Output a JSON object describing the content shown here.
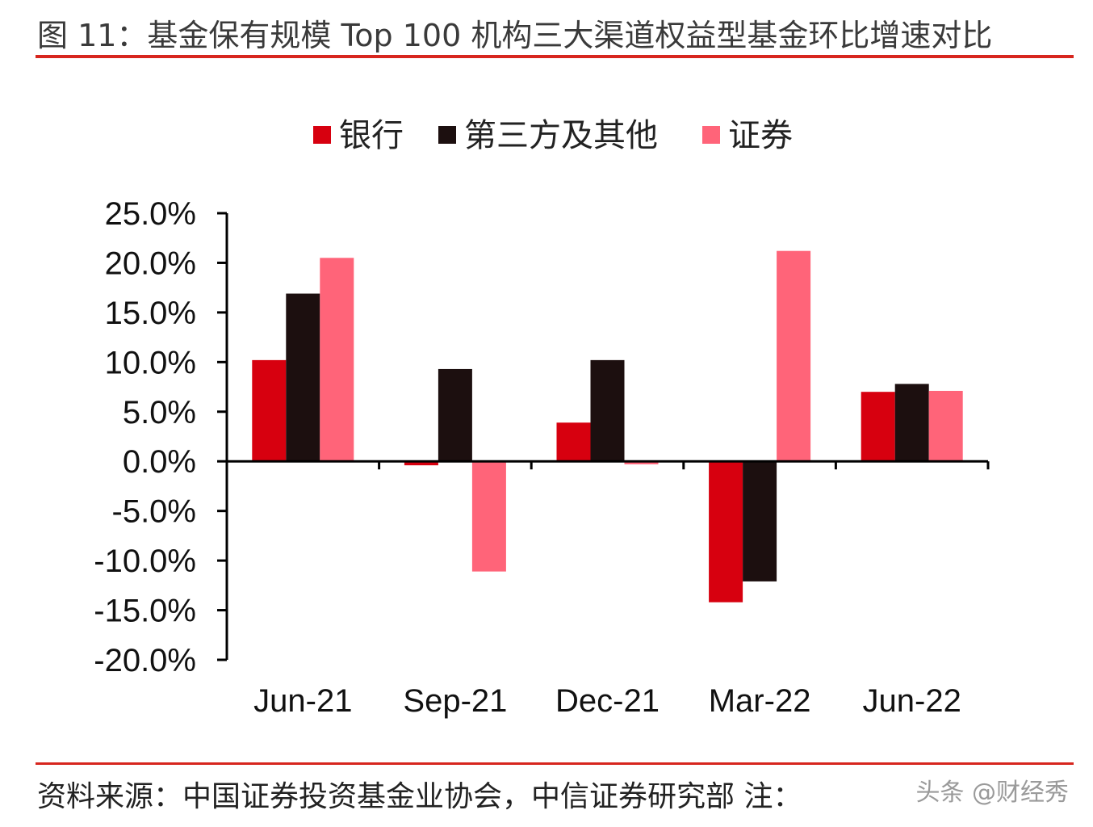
{
  "title": "图 11：基金保有规模 Top 100 机构三大渠道权益型基金环比增速对比",
  "footer": "资料来源：中国证券投资基金业协会，中信证券研究部 注：",
  "watermark": "头条 @财经秀",
  "colors": {
    "accent_rule": "#d7261e",
    "bank": "#d7000f",
    "third_party": "#1c0f0f",
    "securities": "#ff6479"
  },
  "chart_data": {
    "type": "bar",
    "title": "",
    "xlabel": "",
    "ylabel": "",
    "categories": [
      "Jun-21",
      "Sep-21",
      "Dec-21",
      "Mar-22",
      "Jun-22"
    ],
    "series": [
      {
        "name": "银行",
        "color": "#d7000f",
        "values": [
          10.2,
          -0.4,
          3.9,
          -14.2,
          7.0
        ]
      },
      {
        "name": "第三方及其他",
        "color": "#1c0f0f",
        "values": [
          16.9,
          9.3,
          10.2,
          -12.1,
          7.8
        ]
      },
      {
        "name": "证券",
        "color": "#ff6479",
        "values": [
          20.5,
          -11.1,
          -0.3,
          21.2,
          7.1
        ]
      }
    ],
    "ylim": [
      -20,
      25
    ],
    "yticks": [
      25,
      20,
      15,
      10,
      5,
      0,
      -5,
      -10,
      -15,
      -20
    ],
    "ytick_labels": [
      "25.0%",
      "20.0%",
      "15.0%",
      "10.0%",
      "5.0%",
      "0.0%",
      "-5.0%",
      "-10.0%",
      "-15.0%",
      "-20.0%"
    ],
    "legend_position": "top-center",
    "grid": false
  }
}
